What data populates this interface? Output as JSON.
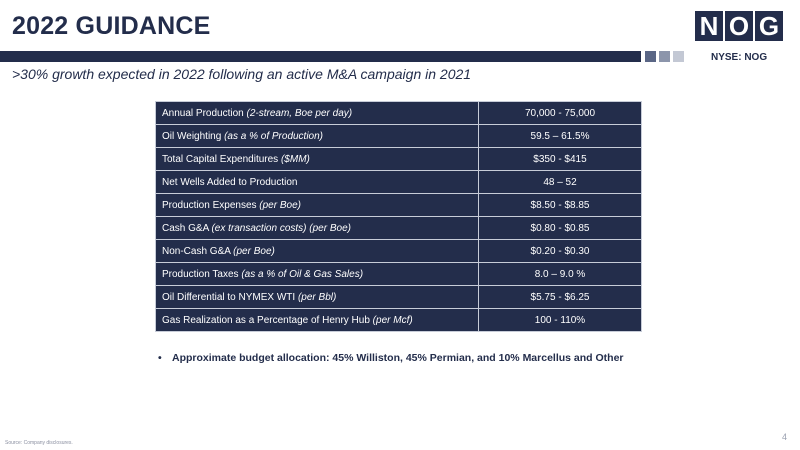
{
  "title": "2022 GUIDANCE",
  "logo": [
    "N",
    "O",
    "G"
  ],
  "ticker": "NYSE: NOG",
  "subtitle": ">30% growth expected in 2022 following an active M&A campaign in 2021",
  "colors": {
    "navy": "#232d4b",
    "square1": "#5a6685",
    "square2": "#8c95ab",
    "square3": "#c3c8d4"
  },
  "rows": [
    {
      "label": "Annual Production ",
      "qual": "(2-stream, Boe per day)",
      "value": "70,000 - 75,000"
    },
    {
      "label": "Oil Weighting ",
      "qual": "(as a % of Production)",
      "value": "59.5 – 61.5%"
    },
    {
      "label": "Total Capital Expenditures ",
      "qual": "($MM)",
      "value": "$350 - $415"
    },
    {
      "label": "Net Wells Added to Production",
      "qual": "",
      "value": "48 – 52"
    },
    {
      "label": "Production Expenses ",
      "qual": "(per Boe)",
      "value": "$8.50 - $8.85"
    },
    {
      "label": "Cash G&A ",
      "qual": "(ex transaction costs) (per Boe)",
      "value": "$0.80 - $0.85"
    },
    {
      "label": "Non-Cash G&A ",
      "qual": "(per Boe)",
      "value": "$0.20 - $0.30"
    },
    {
      "label": "Production Taxes ",
      "qual": "(as a % of Oil & Gas Sales)",
      "value": "8.0 – 9.0 %"
    },
    {
      "label": "Oil Differential to NYMEX WTI ",
      "qual": "(per Bbl)",
      "value": "$5.75 - $6.25"
    },
    {
      "label": "Gas Realization as a Percentage of Henry Hub ",
      "qual": "(per Mcf)",
      "value": "100 - 110%"
    }
  ],
  "bullet": "Approximate budget allocation: 45% Williston, 45% Permian, and 10% Marcellus and Other",
  "source": "Source: Company disclosures.",
  "page_number": "4"
}
